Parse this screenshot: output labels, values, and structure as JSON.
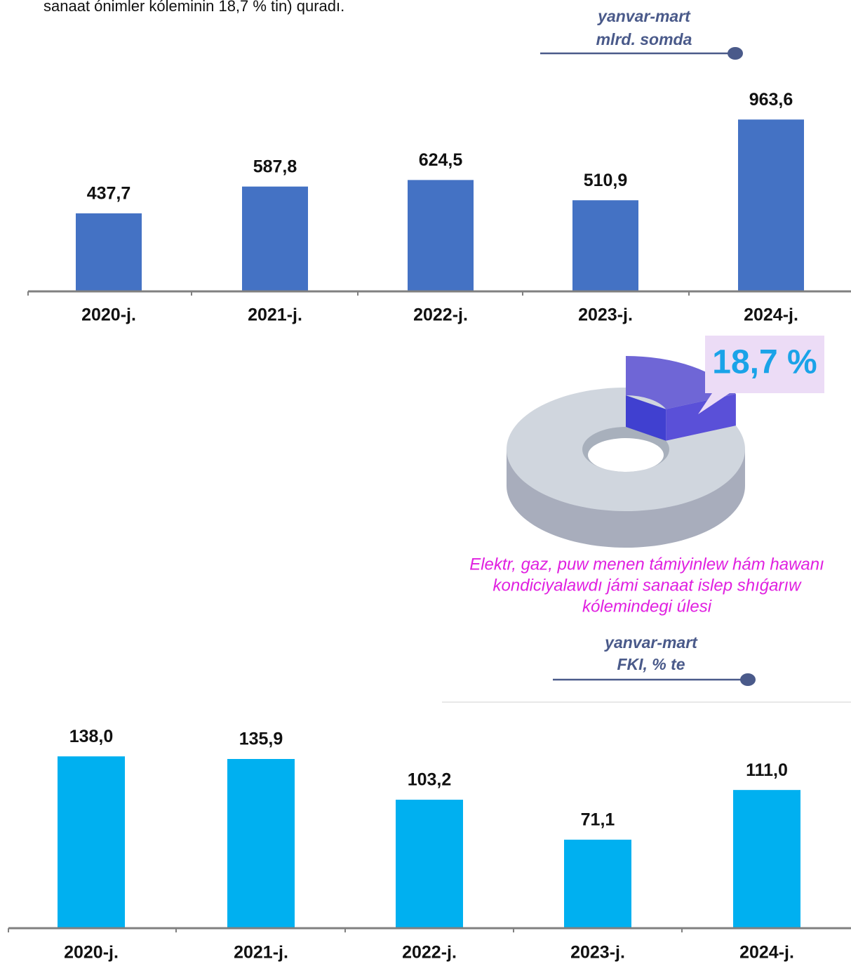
{
  "header_text": "sanaat ónimler kóleminin 18,7 % tin) quradı.",
  "chart_data": [
    {
      "type": "bar",
      "subtitle": [
        "yanvar-mart",
        "mlrd. somda"
      ],
      "categories": [
        "2020-j.",
        "2021-j.",
        "2022-j.",
        "2023-j.",
        "2024-j."
      ],
      "values": [
        437.7,
        587.8,
        624.5,
        510.9,
        963.6
      ],
      "value_labels": [
        "437,7",
        "587,8",
        "624,5",
        "510,9",
        "963,6"
      ],
      "color": "#4472c4",
      "ylim": [
        0,
        1000
      ]
    },
    {
      "type": "pie",
      "values": [
        18.7
      ],
      "value_labels": [
        "18,7 %"
      ],
      "caption": [
        "Elektr, gaz, puw menen támiyinlew hám hawanı",
        "kondiciyalawdı jámi sanaat islep shıǵarıw",
        "kólemindegi úlesi"
      ],
      "color": "#6f66d6"
    },
    {
      "type": "bar",
      "subtitle": [
        "yanvar-mart",
        "FKI, % te"
      ],
      "categories": [
        "2020-j.",
        "2021-j.",
        "2022-j.",
        "2023-j.",
        "2024-j."
      ],
      "values": [
        138.0,
        135.9,
        103.2,
        71.1,
        111.0
      ],
      "value_labels": [
        "138,0",
        "135,9",
        "103,2",
        "71,1",
        "111,0"
      ],
      "color": "#00b0f0",
      "ylim": [
        0,
        150
      ]
    }
  ]
}
